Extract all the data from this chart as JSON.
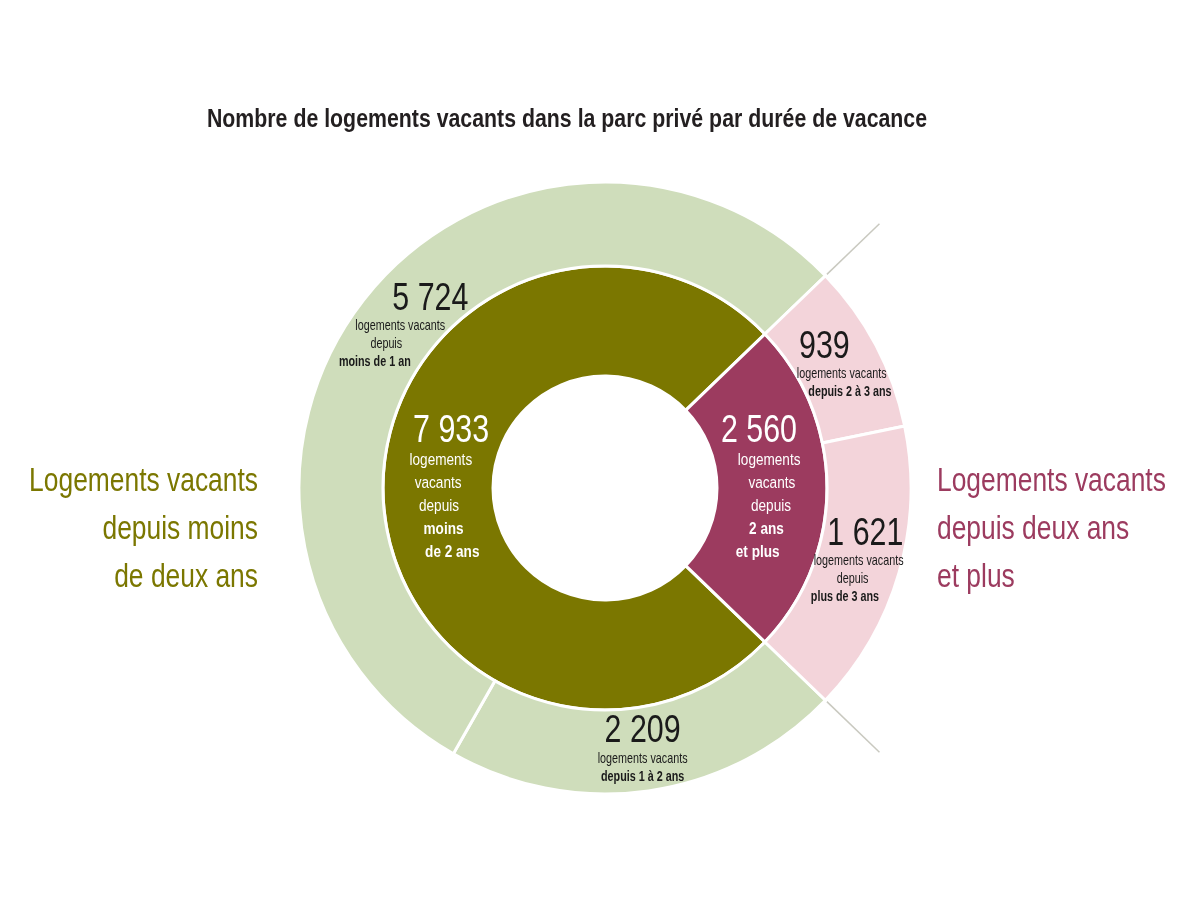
{
  "chart_data": [
    {
      "type": "donut",
      "title": "Nombre de logements vacants dans la parc privé par durée de vacance",
      "categories": [
        "logements\nvacants\ndepuis\nmoins\nde 2 ans",
        "logements\nvacants\ndepuis\n2 ans\net plus"
      ],
      "values": [
        7933,
        2560
      ],
      "value_labels": [
        "7 933",
        "2 560"
      ],
      "colors": [
        "#7b7700",
        "#9c3b5f"
      ],
      "annotations": [
        "Logements vacants\ndepuis moins\nde deux ans",
        "Logements vacants\ndepuis deux ans\net plus"
      ]
    },
    {
      "type": "donut",
      "categories": [
        "logements vacants\ndepuis 1 à 2 ans",
        "logements vacants\ndepuis\nmoins de 1 an",
        "logements vacants\ndepuis 2 à 3 ans",
        "logements vacants\ndepuis\nplus de 3 ans"
      ],
      "values": [
        2209,
        5724,
        939,
        1621
      ],
      "value_labels": [
        "2 209",
        "5 724",
        "939",
        "1 621"
      ],
      "colors": [
        "#cfddbb",
        "#cfddbb",
        "#f3d4da",
        "#f3d4da"
      ]
    }
  ]
}
